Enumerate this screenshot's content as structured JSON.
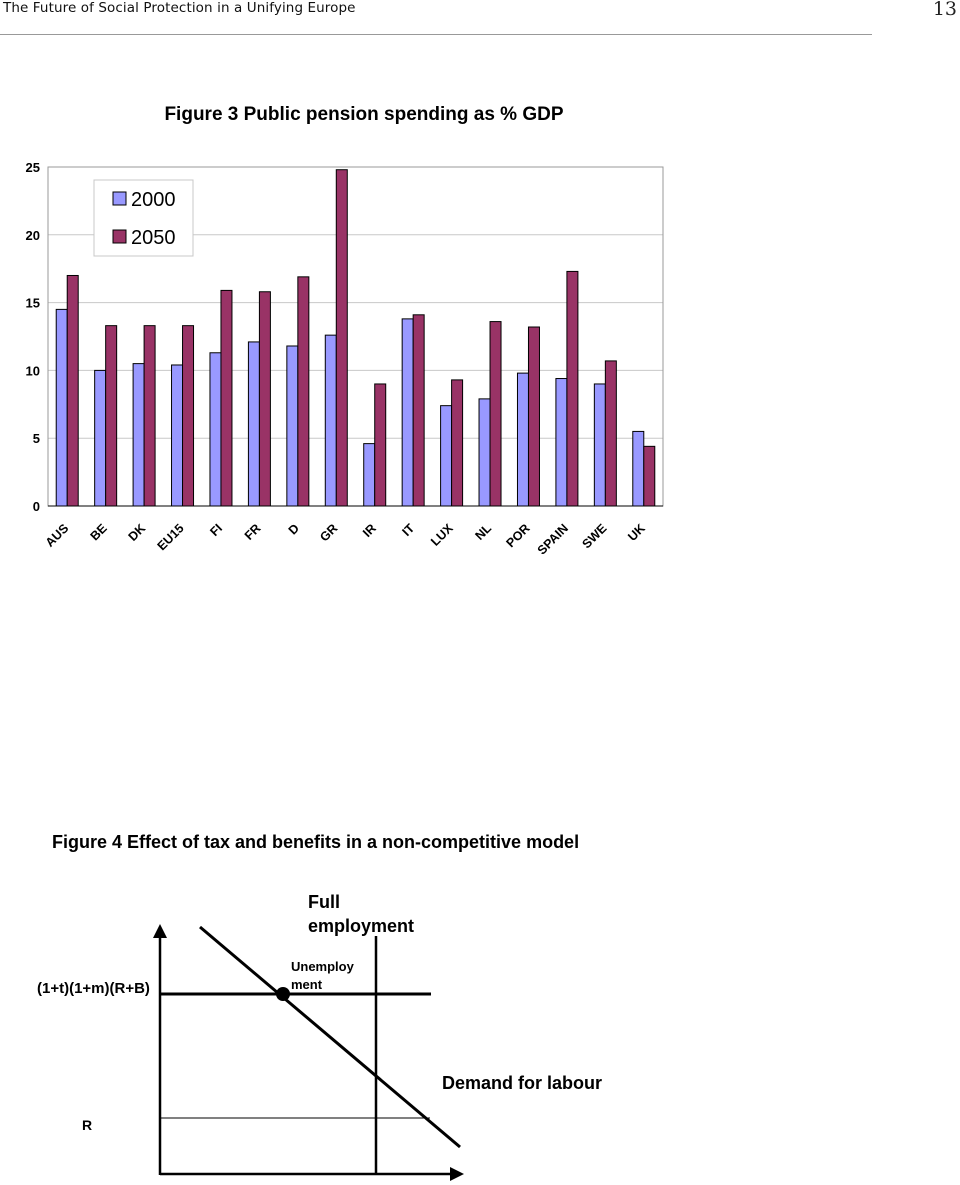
{
  "header": {
    "running_title": "The Future of Social Protection in a Unifying Europe",
    "page_number": "13"
  },
  "chart_data": [
    {
      "type": "bar",
      "title": "Figure 3  Public pension spending as % GDP",
      "categories": [
        "AUS",
        "BE",
        "DK",
        "EU15",
        "FI",
        "FR",
        "D",
        "GR",
        "IR",
        "IT",
        "LUX",
        "NL",
        "POR",
        "SPAIN",
        "SWE",
        "UK"
      ],
      "series": [
        {
          "name": "2000",
          "color": "#9999ff",
          "values": [
            14.5,
            10.0,
            10.5,
            10.4,
            11.3,
            12.1,
            11.8,
            12.6,
            4.6,
            13.8,
            7.4,
            7.9,
            9.8,
            9.4,
            9.0,
            5.5
          ]
        },
        {
          "name": "2050",
          "color": "#993366",
          "values": [
            17.0,
            13.3,
            13.3,
            13.3,
            15.9,
            15.8,
            16.9,
            24.8,
            9.0,
            14.1,
            9.3,
            13.6,
            13.2,
            17.3,
            10.7,
            4.4
          ]
        }
      ],
      "ylim": [
        0,
        25
      ],
      "yticks": [
        "0",
        "5",
        "10",
        "15",
        "20",
        "25"
      ],
      "grid": true,
      "legend_position": "top-left"
    },
    {
      "type": "diagram",
      "title": "Figure 4 Effect of tax and benefits in a non-competitive model",
      "labels": {
        "full_employment": "Full employment",
        "unemployment": "Unemploy ment",
        "wage_level": "(1+t)(1+m)(R+B)",
        "reservation_wage": "R",
        "demand": "Demand for labour"
      }
    }
  ]
}
